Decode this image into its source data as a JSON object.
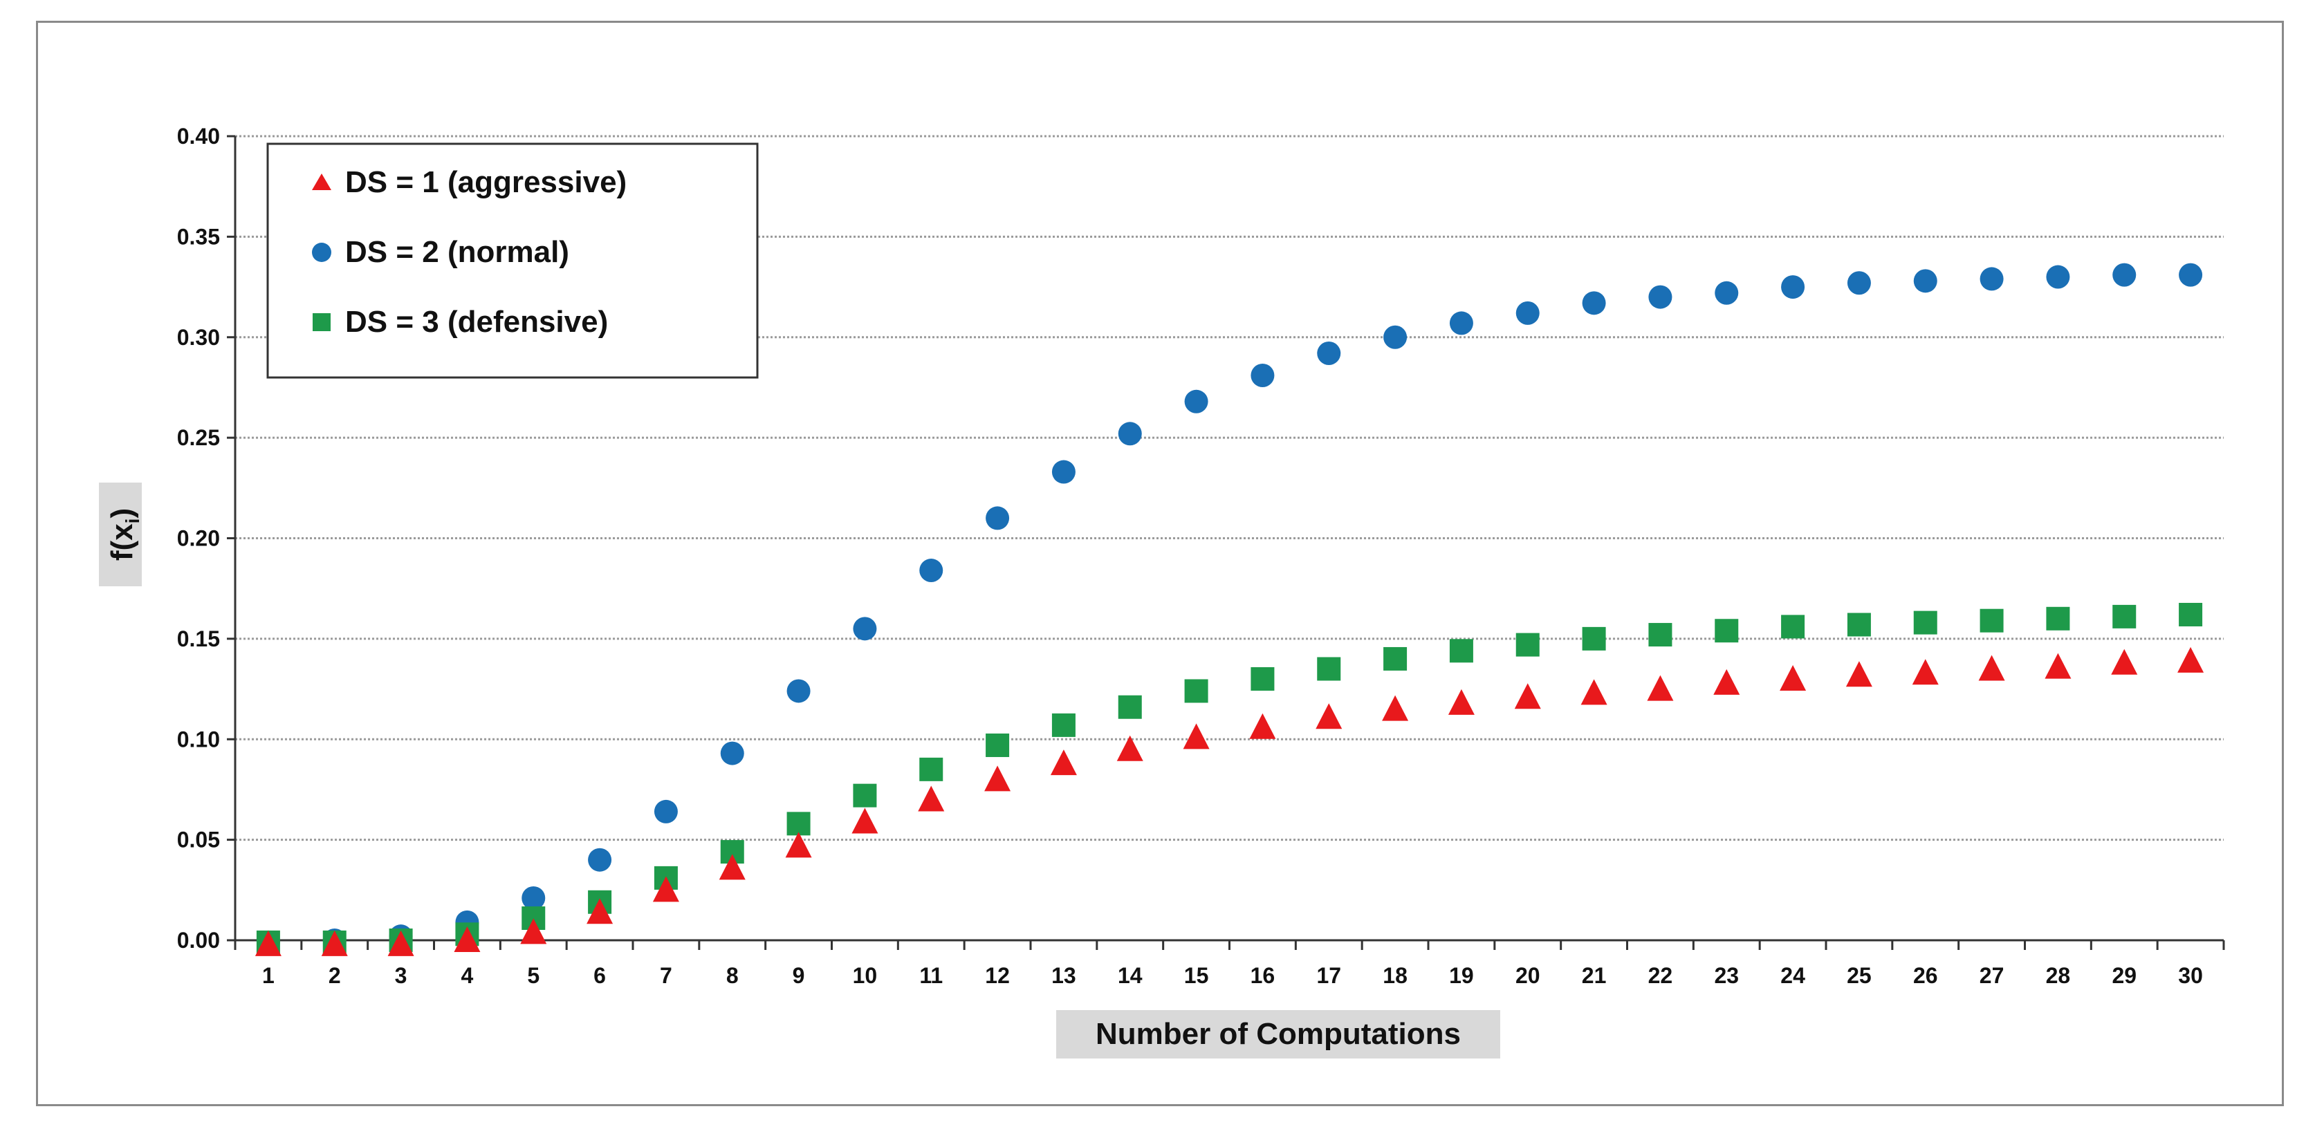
{
  "chart_data": {
    "type": "scatter",
    "xlabel": "Number of Computations",
    "ylabel": "f(x",
    "ylabel_subscript": "i",
    "ylabel_close": ")",
    "x": [
      1,
      2,
      3,
      4,
      5,
      6,
      7,
      8,
      9,
      10,
      11,
      12,
      13,
      14,
      15,
      16,
      17,
      18,
      19,
      20,
      21,
      22,
      23,
      24,
      25,
      26,
      27,
      28,
      29,
      30
    ],
    "ylim": [
      0,
      0.4
    ],
    "yticks": [
      "0.00",
      "0.05",
      "0.10",
      "0.15",
      "0.20",
      "0.25",
      "0.30",
      "0.35",
      "0.40"
    ],
    "ytick_values": [
      0,
      0.05,
      0.1,
      0.15,
      0.2,
      0.25,
      0.3,
      0.35,
      0.4
    ],
    "grid": true,
    "legend_position": "top-left",
    "series": [
      {
        "name": "DS = 1 (aggressive)",
        "marker": "triangle",
        "color": "#e8191c",
        "values": [
          -0.002,
          -0.002,
          -0.002,
          0.0,
          0.004,
          0.014,
          0.025,
          0.036,
          0.047,
          0.059,
          0.07,
          0.08,
          0.088,
          0.095,
          0.101,
          0.106,
          0.111,
          0.115,
          0.118,
          0.121,
          0.123,
          0.125,
          0.128,
          0.13,
          0.132,
          0.133,
          0.135,
          0.136,
          0.138,
          0.139
        ]
      },
      {
        "name": "DS = 2 (normal)",
        "marker": "circle",
        "color": "#1a6fb5",
        "values": [
          -0.001,
          0.0,
          0.002,
          0.009,
          0.021,
          0.04,
          0.064,
          0.093,
          0.124,
          0.155,
          0.184,
          0.21,
          0.233,
          0.252,
          0.268,
          0.281,
          0.292,
          0.3,
          0.307,
          0.312,
          0.317,
          0.32,
          0.322,
          0.325,
          0.327,
          0.328,
          0.329,
          0.33,
          0.331,
          0.331
        ]
      },
      {
        "name": "DS = 3 (defensive)",
        "marker": "square",
        "color": "#1e9a4a",
        "values": [
          -0.001,
          -0.001,
          0.0,
          0.003,
          0.011,
          0.019,
          0.031,
          0.044,
          0.058,
          0.072,
          0.085,
          0.097,
          0.107,
          0.116,
          0.124,
          0.13,
          0.135,
          0.14,
          0.144,
          0.147,
          0.15,
          0.152,
          0.154,
          0.156,
          0.157,
          0.158,
          0.159,
          0.16,
          0.161,
          0.162
        ]
      }
    ]
  }
}
